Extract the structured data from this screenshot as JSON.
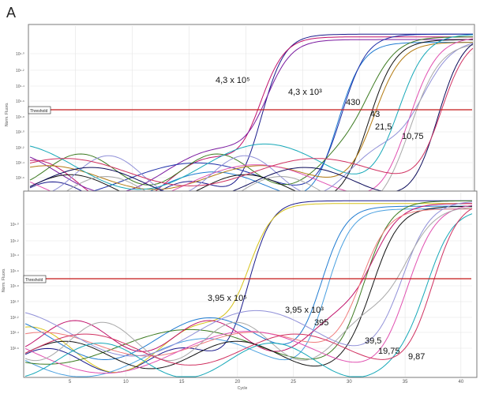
{
  "figure_label": "A",
  "chart_data": [
    {
      "type": "line",
      "panel": "upper",
      "ylabel": "Norm. Fluoro.",
      "threshold_label": "Threshold",
      "y_scale": "log",
      "xlim": [
        1,
        40
      ],
      "ylim_exp": [
        -3.2,
        0.2
      ],
      "y_tick_labels": [
        "10¹·⁰",
        "10¹·²",
        "10¹·⁴",
        "10¹·⁶",
        "10¹·⁸",
        "10²·⁰",
        "10²·²",
        "10²·⁴",
        "10²·⁶"
      ],
      "threshold_exp": -1.43,
      "grid": true,
      "series": [
        {
          "color": "#1a1a8c",
          "midpoint": 21.3,
          "slope": 0.42
        },
        {
          "color": "#c0106a",
          "midpoint": 21.0,
          "slope": 0.42
        },
        {
          "color": "#7a1aa0",
          "midpoint": 21.6,
          "slope": 0.41
        },
        {
          "color": "#1f7bd1",
          "midpoint": 28.0,
          "slope": 0.4
        },
        {
          "color": "#1d2fa8",
          "midpoint": 28.4,
          "slope": 0.4
        },
        {
          "color": "#3c7a20",
          "midpoint": 30.7,
          "slope": 0.38
        },
        {
          "color": "#111111",
          "midpoint": 31.0,
          "slope": 0.38
        },
        {
          "color": "#b37a10",
          "midpoint": 31.3,
          "slope": 0.37
        },
        {
          "color": "#16a8b8",
          "midpoint": 33.4,
          "slope": 0.36
        },
        {
          "color": "#e04fb0",
          "midpoint": 34.3,
          "slope": 0.35
        },
        {
          "color": "#9090d8",
          "midpoint": 35.0,
          "slope": 0.33
        },
        {
          "color": "#a8a8a8",
          "midpoint": 34.8,
          "slope": 0.34
        },
        {
          "color": "#0b0b5a",
          "midpoint": 37.0,
          "slope": 0.4
        },
        {
          "color": "#d03060",
          "midpoint": 37.2,
          "slope": 0.4
        }
      ],
      "annotations": [
        {
          "text": "4,3 x 10⁵"
        },
        {
          "text": "4,3 x 10³"
        },
        {
          "text": "430"
        },
        {
          "text": "43"
        },
        {
          "text": "21,5"
        },
        {
          "text": "10,75"
        }
      ]
    },
    {
      "type": "line",
      "panel": "lower",
      "ylabel": "Norm. Fluoro.",
      "xlabel": "Cycle",
      "threshold_label": "Threshold",
      "y_scale": "log",
      "xlim": [
        1,
        41
      ],
      "x_ticks": [
        5,
        10,
        15,
        20,
        25,
        30,
        35,
        40
      ],
      "ylim_exp": [
        -3.2,
        0.2
      ],
      "y_tick_labels": [
        "10¹·⁰",
        "10¹·²",
        "10¹·⁴",
        "10¹·⁶",
        "10¹·⁸",
        "10²·⁰",
        "10²·²",
        "10²·⁴",
        "10²·⁶"
      ],
      "threshold_exp": -1.1,
      "grid": true,
      "series": [
        {
          "color": "#1a1a8c",
          "midpoint": 20.9,
          "slope": 0.42
        },
        {
          "color": "#d6c21a",
          "midpoint": 20.7,
          "slope": 0.42
        },
        {
          "color": "#1f7bd1",
          "midpoint": 27.5,
          "slope": 0.4
        },
        {
          "color": "#4aa0e0",
          "midpoint": 27.9,
          "slope": 0.4
        },
        {
          "color": "#3c7a20",
          "midpoint": 31.4,
          "slope": 0.37
        },
        {
          "color": "#c0106a",
          "midpoint": 31.8,
          "slope": 0.37
        },
        {
          "color": "#111111",
          "midpoint": 32.3,
          "slope": 0.37
        },
        {
          "color": "#f07c7c",
          "midpoint": 31.0,
          "slope": 0.36
        },
        {
          "color": "#9090d8",
          "midpoint": 34.8,
          "slope": 0.34
        },
        {
          "color": "#e04fb0",
          "midpoint": 35.2,
          "slope": 0.34
        },
        {
          "color": "#a8a8a8",
          "midpoint": 34.6,
          "slope": 0.34
        },
        {
          "color": "#16a8b8",
          "midpoint": 37.2,
          "slope": 0.4
        },
        {
          "color": "#d03060",
          "midpoint": 37.6,
          "slope": 0.38
        }
      ],
      "annotations": [
        {
          "text": "3,95 x 10⁵"
        },
        {
          "text": "3,95 x 10³"
        },
        {
          "text": "395"
        },
        {
          "text": "39,5"
        },
        {
          "text": "19,75"
        },
        {
          "text": "9,87"
        }
      ]
    }
  ]
}
